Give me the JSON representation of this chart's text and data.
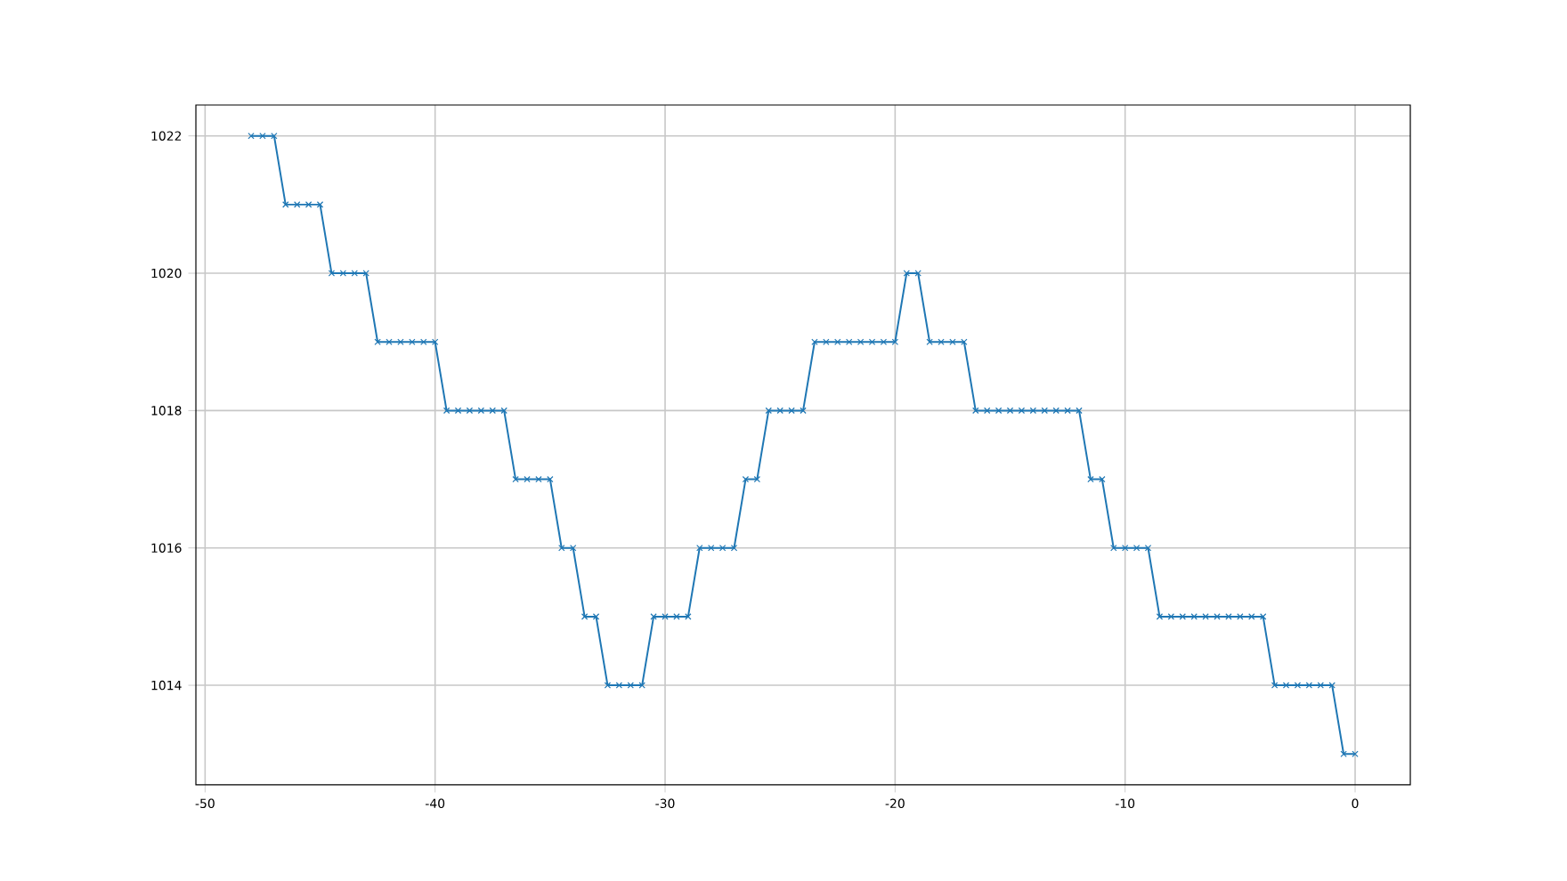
{
  "chart_data": {
    "type": "line",
    "x": [
      -48,
      -47.5,
      -47,
      -46.5,
      -46,
      -45.5,
      -45,
      -44.5,
      -44,
      -43.5,
      -43,
      -42.5,
      -42,
      -41.5,
      -41,
      -40.5,
      -40,
      -39.5,
      -39,
      -38.5,
      -38,
      -37.5,
      -37,
      -36.5,
      -36,
      -35.5,
      -35,
      -34.5,
      -34,
      -33.5,
      -33,
      -32.5,
      -32,
      -31.5,
      -31,
      -30.5,
      -30,
      -29.5,
      -29,
      -28.5,
      -28,
      -27.5,
      -27,
      -26.5,
      -26,
      -25.5,
      -25,
      -24.5,
      -24,
      -23.5,
      -23,
      -22.5,
      -22,
      -21.5,
      -21,
      -20.5,
      -20,
      -19.5,
      -19,
      -18.5,
      -18,
      -17.5,
      -17,
      -16.5,
      -16,
      -15.5,
      -15,
      -14.5,
      -14,
      -13.5,
      -13,
      -12.5,
      -12,
      -11.5,
      -11,
      -10.5,
      -10,
      -9.5,
      -9,
      -8.5,
      -8,
      -7.5,
      -7,
      -6.5,
      -6,
      -5.5,
      -5,
      -4.5,
      -4,
      -3.5,
      -3,
      -2.5,
      -2,
      -1.5,
      -1,
      -0.5,
      0
    ],
    "series": [
      {
        "color": "#1f77b4",
        "values": [
          1022,
          1022,
          1022,
          1021,
          1021,
          1021,
          1021,
          1020,
          1020,
          1020,
          1020,
          1019,
          1019,
          1019,
          1019,
          1019,
          1019,
          1018,
          1018,
          1018,
          1018,
          1018,
          1018,
          1017,
          1017,
          1017,
          1017,
          1016,
          1016,
          1015,
          1015,
          1014,
          1014,
          1014,
          1014,
          1015,
          1015,
          1015,
          1015,
          1016,
          1016,
          1016,
          1016,
          1017,
          1017,
          1018,
          1018,
          1018,
          1018,
          1019,
          1019,
          1019,
          1019,
          1019,
          1019,
          1019,
          1019,
          1020,
          1020,
          1019,
          1019,
          1019,
          1019,
          1018,
          1018,
          1018,
          1018,
          1018,
          1018,
          1018,
          1018,
          1018,
          1018,
          1017,
          1017,
          1016,
          1016,
          1016,
          1016,
          1015,
          1015,
          1015,
          1015,
          1015,
          1015,
          1015,
          1015,
          1015,
          1015,
          1014,
          1014,
          1014,
          1014,
          1014,
          1014,
          1013,
          1013
        ]
      }
    ],
    "xlim": [
      -50.4,
      2.4
    ],
    "ylim": [
      1012.55,
      1022.45
    ],
    "xticks": [
      -50,
      -40,
      -30,
      -20,
      -10,
      0
    ],
    "yticks": [
      1014,
      1016,
      1018,
      1020,
      1022
    ],
    "grid": true,
    "marker": "cross",
    "line_style": "solid"
  }
}
